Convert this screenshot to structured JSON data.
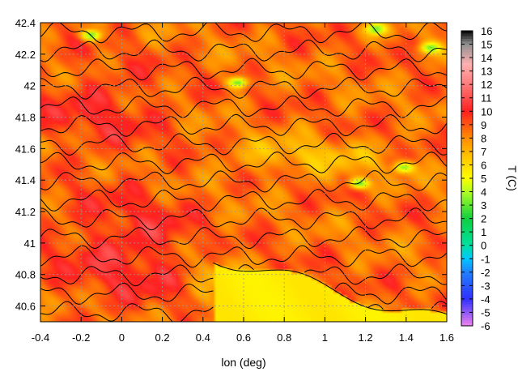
{
  "chart_data": {
    "type": "heatmap",
    "title": "",
    "xlabel": "lon (deg)",
    "ylabel": "",
    "colorbar_label": "T (C)",
    "xlim": [
      -0.4,
      1.6
    ],
    "ylim": [
      40.5,
      42.4
    ],
    "xticks": [
      "-0.4",
      "-0.2",
      "0",
      "0.2",
      "0.4",
      "0.6",
      "0.8",
      "1",
      "1.2",
      "1.4",
      "1.6"
    ],
    "yticks": [
      "40.6",
      "40.8",
      "41",
      "41.2",
      "41.4",
      "41.6",
      "41.8",
      "42",
      "42.2",
      "42.4"
    ],
    "colorbar_ticks": [
      "-6",
      "-5",
      "-4",
      "-3",
      "-2",
      "-1",
      "0",
      "1",
      "2",
      "3",
      "4",
      "5",
      "6",
      "7",
      "8",
      "9",
      "10",
      "11",
      "12",
      "13",
      "14",
      "15",
      "16"
    ],
    "zlim": [
      -6,
      16
    ],
    "grid": true,
    "colormap": [
      {
        "t": -6,
        "color": "#ee82ee"
      },
      {
        "t": -4,
        "color": "#3030ff"
      },
      {
        "t": -2,
        "color": "#2080ff"
      },
      {
        "t": -1,
        "color": "#00c8ff"
      },
      {
        "t": 0,
        "color": "#00e0a0"
      },
      {
        "t": 2,
        "color": "#10d040"
      },
      {
        "t": 4,
        "color": "#b0ff20"
      },
      {
        "t": 5,
        "color": "#ffff00"
      },
      {
        "t": 6.5,
        "color": "#ffc800"
      },
      {
        "t": 8,
        "color": "#ff8c00"
      },
      {
        "t": 10,
        "color": "#ff2020"
      },
      {
        "t": 12,
        "color": "#ff7a7a"
      },
      {
        "t": 13.5,
        "color": "#ffb0b0"
      },
      {
        "t": 15,
        "color": "#909090"
      },
      {
        "t": 16,
        "color": "#000000"
      }
    ],
    "field_summary": {
      "sea_region": "southeast, below the coastline",
      "sea_temperature_C": 5.5,
      "warmest_region": "southwest interior, about 11 C",
      "coolest_spots": [
        {
          "lon": -0.15,
          "lat": 42.32,
          "T": 3
        },
        {
          "lon": 0.57,
          "lat": 42.02,
          "T": 3
        },
        {
          "lon": 1.17,
          "lat": 41.38,
          "T": 3
        },
        {
          "lon": 1.39,
          "lat": 41.48,
          "T": 3.5
        },
        {
          "lon": 1.25,
          "lat": 42.36,
          "T": 3
        },
        {
          "lon": 1.52,
          "lat": 42.24,
          "T": 3
        }
      ],
      "contour_levels_C": [
        6,
        8,
        10
      ]
    }
  }
}
